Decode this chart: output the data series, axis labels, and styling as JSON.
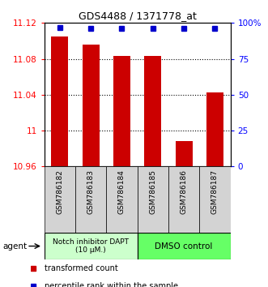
{
  "title": "GDS4488 / 1371778_at",
  "categories": [
    "GSM786182",
    "GSM786183",
    "GSM786184",
    "GSM786185",
    "GSM786186",
    "GSM786187"
  ],
  "bar_values": [
    11.105,
    11.096,
    11.083,
    11.083,
    10.988,
    11.043
  ],
  "percentile_values": [
    97,
    96,
    96,
    96,
    96,
    96
  ],
  "ylim_left": [
    10.96,
    11.12
  ],
  "ylim_right": [
    0,
    100
  ],
  "yticks_left": [
    10.96,
    11.0,
    11.04,
    11.08,
    11.12
  ],
  "yticks_right": [
    0,
    25,
    50,
    75,
    100
  ],
  "ytick_labels_left": [
    "10.96",
    "11",
    "11.04",
    "11.08",
    "11.12"
  ],
  "ytick_labels_right": [
    "0",
    "25",
    "50",
    "75",
    "100%"
  ],
  "bar_color": "#cc0000",
  "square_color": "#0000cc",
  "bar_width": 0.55,
  "group1_label": "Notch inhibitor DAPT\n(10 μM.)",
  "group2_label": "DMSO control",
  "group1_color": "#ccffcc",
  "group2_color": "#66ff66",
  "agent_label": "agent",
  "legend1": "transformed count",
  "legend2": "percentile rank within the sample",
  "baseline": 10.96,
  "gridlines": [
    11.0,
    11.04,
    11.08
  ],
  "label_box_color": "#d3d3d3",
  "n_group1": 3,
  "n_group2": 3
}
